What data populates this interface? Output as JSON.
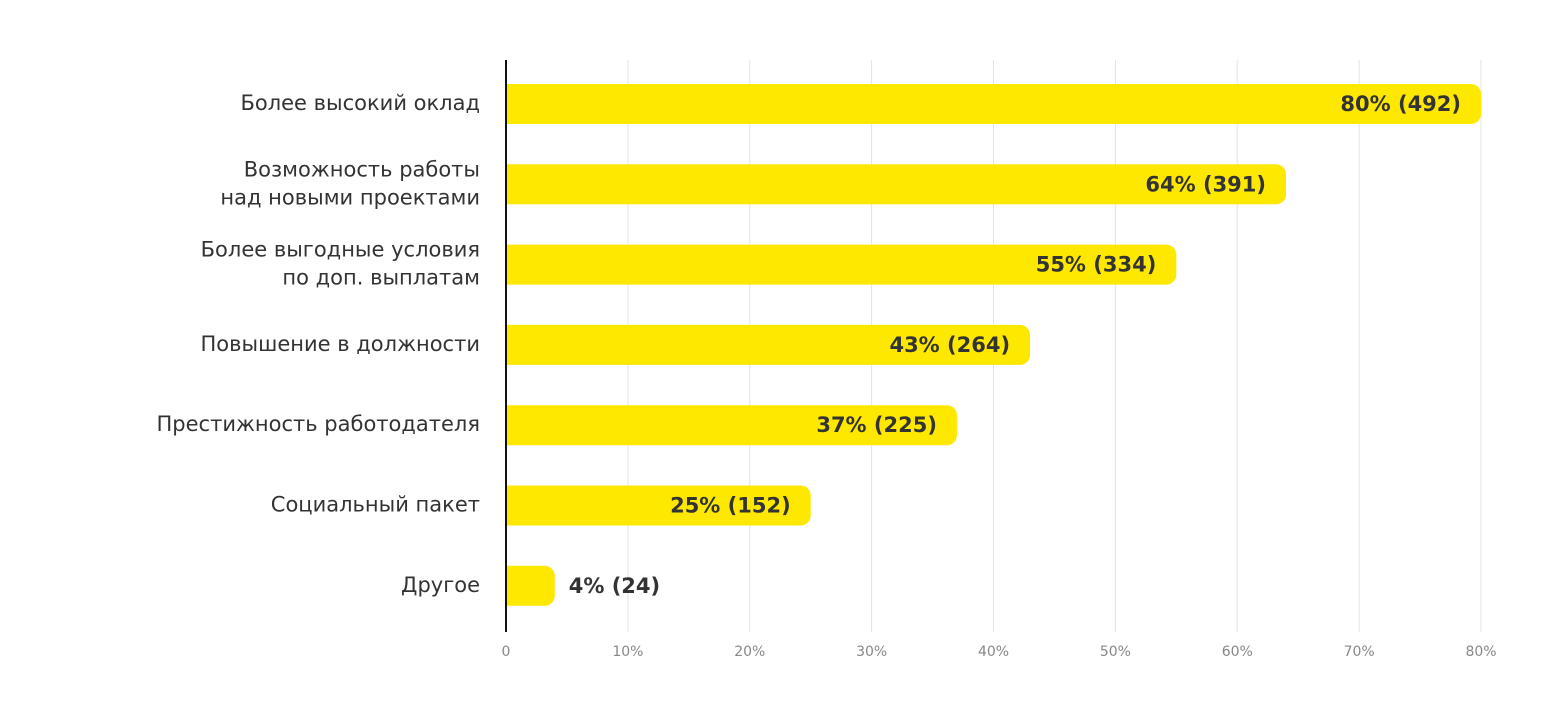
{
  "chart_data": {
    "type": "hbar",
    "categories": [
      [
        "Более высокий оклад"
      ],
      [
        "Возможность работы",
        "над новыми проектами"
      ],
      [
        "Более выгодные условия",
        "по доп. выплатам"
      ],
      [
        "Повышение в должности"
      ],
      [
        "Престижность работодателя"
      ],
      [
        "Социальный пакет"
      ],
      [
        "Другое"
      ]
    ],
    "values": [
      80,
      64,
      55,
      43,
      37,
      25,
      4
    ],
    "value_labels": [
      "80% (492)",
      "64% (391)",
      "55% (334)",
      "43% (264)",
      "37% (225)",
      "25% (152)",
      "4% (24)"
    ],
    "color": "#ffe800",
    "xlim": [
      0,
      80
    ],
    "xticks": [
      0,
      {
        "value": 10,
        "label": "10%"
      },
      {
        "value": 20,
        "label": "20%"
      },
      {
        "value": 30,
        "label": "30%"
      },
      {
        "value": 40,
        "label": "40%"
      },
      {
        "value": 50,
        "label": "50%"
      },
      {
        "value": 60,
        "label": "60%"
      },
      {
        "value": 70,
        "label": "70%"
      },
      {
        "value": 80,
        "label": "80%"
      }
    ],
    "grid": true
  }
}
